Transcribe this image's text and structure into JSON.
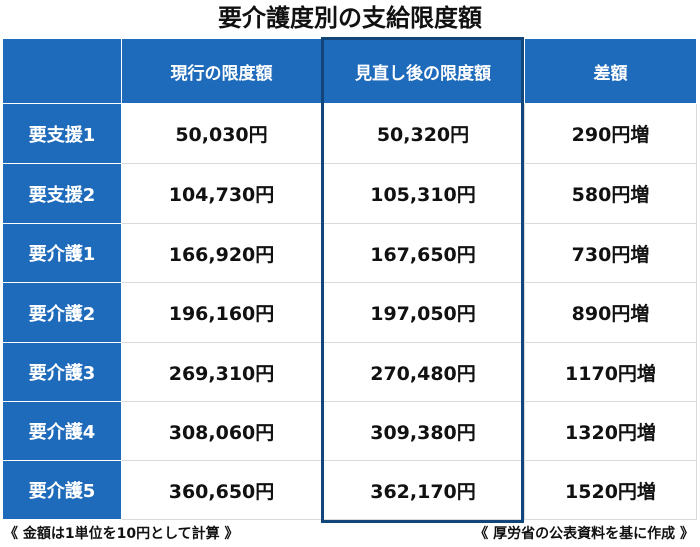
{
  "title": "要介護度別の支給限度額",
  "table": {
    "headers": [
      "",
      "現行の限度額",
      "見直し後の限度額",
      "差額"
    ],
    "rows": [
      [
        "要支援1",
        "50,030円",
        "50,320円",
        "290円増"
      ],
      [
        "要支援2",
        "104,730円",
        "105,310円",
        "580円増"
      ],
      [
        "要介護1",
        "166,920円",
        "167,650円",
        "730円増"
      ],
      [
        "要介護2",
        "196,160円",
        "197,050円",
        "890円増"
      ],
      [
        "要介護3",
        "269,310円",
        "270,480円",
        "1170円増"
      ],
      [
        "要介護4",
        "308,060円",
        "309,380円",
        "1320円増"
      ],
      [
        "要介護5",
        "360,650円",
        "362,170円",
        "1520円増"
      ]
    ]
  },
  "notes": {
    "left": "《 金額は1単位を10円として計算 》",
    "right": "《 厚労省の公表資料を基に作成 》"
  },
  "colors": {
    "header_bg": "#1f6bbb",
    "highlight_border": "#12457a",
    "text": "#111111"
  }
}
